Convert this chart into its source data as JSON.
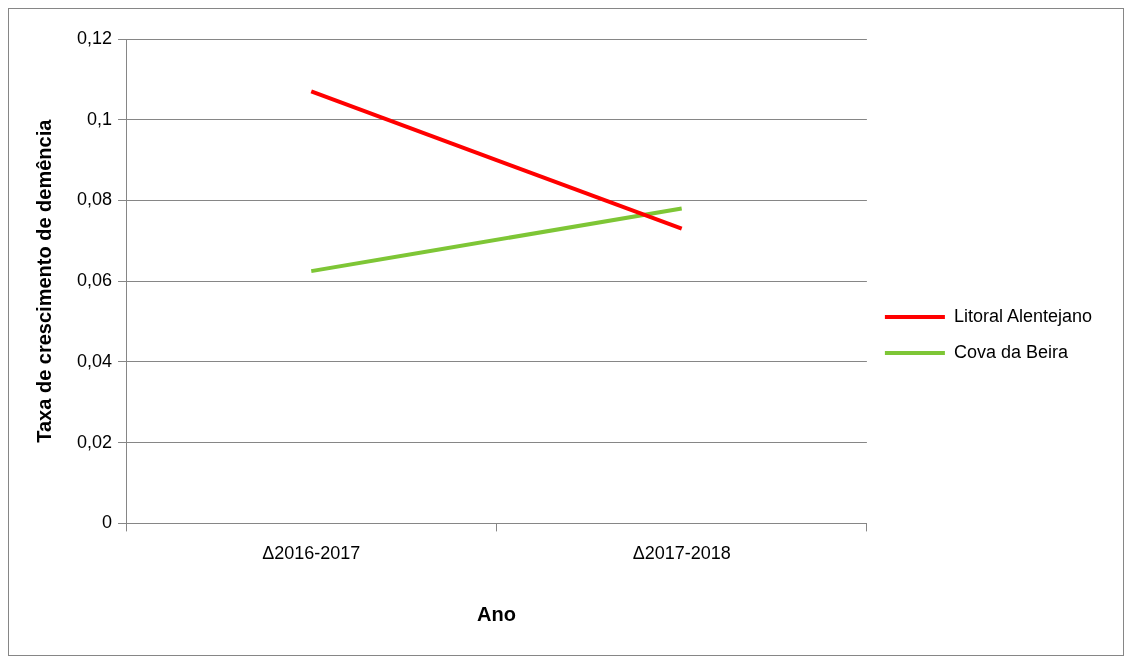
{
  "chart_data": {
    "type": "line",
    "xlabel": "Ano",
    "ylabel": "Taxa de crescimento de demência",
    "categories": [
      "Δ2016-2017",
      "Δ2017-2018"
    ],
    "series": [
      {
        "name": "Litoral Alentejano",
        "color": "#ff0000",
        "values": [
          0.107,
          0.073
        ]
      },
      {
        "name": "Cova da Beira",
        "color": "#7ec636",
        "values": [
          0.0625,
          0.078
        ]
      }
    ],
    "ylim": [
      0,
      0.12
    ],
    "yticks": [
      0,
      {
        "value": 0.02,
        "label": "0,02"
      },
      {
        "value": 0.04,
        "label": "0,04"
      },
      {
        "value": 0.06,
        "label": "0,06"
      },
      {
        "value": 0.08,
        "label": "0,08"
      },
      {
        "value": 0.1,
        "label": "0,1"
      },
      {
        "value": 0.12,
        "label": "0,12"
      }
    ],
    "grid": "y",
    "legend": "right",
    "marker": "none",
    "line_style": "solid"
  }
}
